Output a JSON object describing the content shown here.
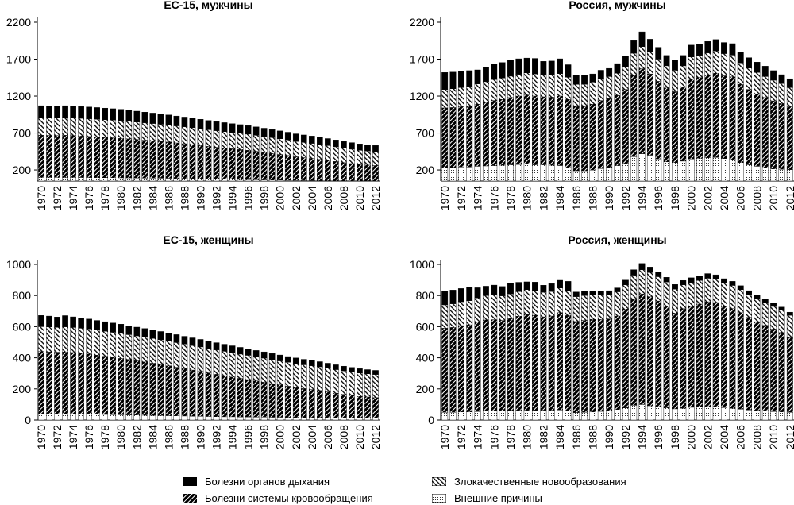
{
  "chart_data": [
    {
      "type": "bar",
      "stacked": true,
      "title": "ЕС-15, мужчины",
      "ylim": [
        50,
        2200
      ],
      "yticks": [
        200,
        700,
        1200,
        1700,
        2200
      ],
      "x": [
        1970,
        1971,
        1972,
        1973,
        1974,
        1975,
        1976,
        1977,
        1978,
        1979,
        1980,
        1981,
        1982,
        1983,
        1984,
        1985,
        1986,
        1987,
        1988,
        1989,
        1990,
        1991,
        1992,
        1993,
        1994,
        1995,
        1996,
        1997,
        1998,
        1999,
        2000,
        2001,
        2002,
        2003,
        2004,
        2005,
        2006,
        2007,
        2008,
        2009,
        2010,
        2011,
        2012
      ],
      "xtick_labels": [
        "1970",
        "1972",
        "1974",
        "1976",
        "1978",
        "1980",
        "1982",
        "1984",
        "1986",
        "1988",
        "1990",
        "1992",
        "1994",
        "1996",
        "1998",
        "2000",
        "2002",
        "2004",
        "2006",
        "2008",
        "2010",
        "2012"
      ],
      "series": [
        {
          "name": "Внешние причины",
          "values": [
            100,
            100,
            100,
            100,
            100,
            99,
            98,
            97,
            96,
            95,
            94,
            93,
            92,
            91,
            90,
            89,
            88,
            86,
            85,
            83,
            81,
            79,
            77,
            76,
            74,
            72,
            70,
            68,
            66,
            64,
            62,
            60,
            58,
            57,
            56,
            55,
            54,
            53,
            52,
            51,
            50,
            50,
            50
          ]
        },
        {
          "name": "Болезни системы кровообращения",
          "values": [
            570,
            568,
            566,
            570,
            565,
            560,
            555,
            550,
            545,
            540,
            535,
            528,
            520,
            512,
            504,
            497,
            490,
            480,
            470,
            460,
            450,
            440,
            430,
            420,
            412,
            404,
            396,
            384,
            372,
            360,
            348,
            336,
            320,
            310,
            300,
            288,
            276,
            262,
            248,
            236,
            224,
            216,
            210
          ]
        },
        {
          "name": "Злокачественные новообразования",
          "values": [
            240,
            240,
            240,
            240,
            240,
            240,
            240,
            240,
            240,
            240,
            240,
            238,
            237,
            236,
            235,
            233,
            232,
            231,
            230,
            229,
            228,
            226,
            225,
            224,
            222,
            221,
            220,
            218,
            216,
            214,
            212,
            210,
            208,
            206,
            204,
            202,
            200,
            198,
            196,
            194,
            192,
            190,
            188
          ]
        },
        {
          "name": "Болезни органов дыхания",
          "values": [
            160,
            160,
            160,
            160,
            160,
            160,
            160,
            158,
            156,
            154,
            152,
            150,
            147,
            144,
            141,
            138,
            135,
            133,
            131,
            129,
            127,
            125,
            123,
            121,
            119,
            117,
            115,
            113,
            111,
            109,
            107,
            105,
            103,
            101,
            99,
            97,
            95,
            93,
            91,
            89,
            87,
            85,
            83
          ]
        }
      ]
    },
    {
      "type": "bar",
      "stacked": true,
      "title": "Россия, мужчины",
      "ylim": [
        50,
        2200
      ],
      "yticks": [
        200,
        700,
        1200,
        1700,
        2200
      ],
      "x": [
        1970,
        1971,
        1972,
        1973,
        1974,
        1975,
        1976,
        1977,
        1978,
        1979,
        1980,
        1981,
        1982,
        1983,
        1984,
        1985,
        1986,
        1987,
        1988,
        1989,
        1990,
        1991,
        1992,
        1993,
        1994,
        1995,
        1996,
        1997,
        1998,
        1999,
        2000,
        2001,
        2002,
        2003,
        2004,
        2005,
        2006,
        2007,
        2008,
        2009,
        2010,
        2011,
        2012
      ],
      "xtick_labels": [
        "1970",
        "1972",
        "1974",
        "1976",
        "1978",
        "1980",
        "1982",
        "1984",
        "1986",
        "1988",
        "1990",
        "1992",
        "1994",
        "1996",
        "1998",
        "2000",
        "2002",
        "2004",
        "2006",
        "2008",
        "2010",
        "2012"
      ],
      "series": [
        {
          "name": "Внешние причины",
          "values": [
            230,
            235,
            240,
            240,
            250,
            255,
            260,
            265,
            270,
            275,
            280,
            270,
            270,
            265,
            260,
            230,
            190,
            190,
            200,
            220,
            235,
            260,
            290,
            380,
            420,
            400,
            350,
            310,
            300,
            320,
            350,
            360,
            365,
            370,
            355,
            340,
            300,
            270,
            250,
            230,
            215,
            210,
            205
          ]
        },
        {
          "name": "Болезни системы кровообращения",
          "values": [
            810,
            810,
            815,
            820,
            840,
            860,
            880,
            890,
            910,
            925,
            935,
            930,
            920,
            920,
            940,
            925,
            870,
            870,
            890,
            920,
            930,
            950,
            1000,
            1100,
            1150,
            1100,
            1050,
            1000,
            960,
            1000,
            1080,
            1090,
            1120,
            1140,
            1120,
            1120,
            1060,
            1020,
            980,
            950,
            920,
            890,
            850
          ]
        },
        {
          "name": "Злокачественные новообразования",
          "values": [
            250,
            255,
            260,
            270,
            275,
            280,
            285,
            290,
            290,
            295,
            300,
            300,
            300,
            300,
            305,
            300,
            300,
            300,
            300,
            300,
            300,
            300,
            300,
            300,
            300,
            300,
            300,
            300,
            290,
            290,
            300,
            300,
            300,
            300,
            300,
            295,
            290,
            290,
            290,
            285,
            280,
            270,
            260
          ]
        },
        {
          "name": "Болезни органов дыхания",
          "values": [
            230,
            225,
            220,
            215,
            190,
            200,
            210,
            210,
            220,
            210,
            200,
            210,
            180,
            190,
            200,
            170,
            120,
            120,
            110,
            110,
            110,
            130,
            150,
            170,
            200,
            170,
            160,
            140,
            140,
            140,
            160,
            150,
            155,
            155,
            150,
            155,
            150,
            140,
            140,
            140,
            130,
            120,
            120
          ]
        }
      ]
    },
    {
      "type": "bar",
      "stacked": true,
      "title": "ЕС-15, женщины",
      "ylim": [
        0,
        1000
      ],
      "yticks": [
        0,
        200,
        400,
        600,
        800,
        1000
      ],
      "x": [
        1970,
        1971,
        1972,
        1973,
        1974,
        1975,
        1976,
        1977,
        1978,
        1979,
        1980,
        1981,
        1982,
        1983,
        1984,
        1985,
        1986,
        1987,
        1988,
        1989,
        1990,
        1991,
        1992,
        1993,
        1994,
        1995,
        1996,
        1997,
        1998,
        1999,
        2000,
        2001,
        2002,
        2003,
        2004,
        2005,
        2006,
        2007,
        2008,
        2009,
        2010,
        2011,
        2012
      ],
      "xtick_labels": [
        "1970",
        "1972",
        "1974",
        "1976",
        "1978",
        "1980",
        "1982",
        "1984",
        "1986",
        "1988",
        "1990",
        "1992",
        "1994",
        "1996",
        "1998",
        "2000",
        "2002",
        "2004",
        "2006",
        "2008",
        "2010",
        "2012"
      ],
      "series": [
        {
          "name": "Внешние причины",
          "values": [
            40,
            40,
            40,
            40,
            40,
            39,
            38,
            37,
            36,
            35,
            34,
            33,
            32,
            31,
            30,
            29,
            28,
            27,
            26,
            25,
            24,
            23,
            22,
            21,
            21,
            20,
            20,
            19,
            19,
            18,
            18,
            17,
            17,
            16,
            16,
            16,
            15,
            15,
            15,
            15,
            14,
            14,
            14
          ]
        },
        {
          "name": "Болезни системы кровообращения",
          "values": [
            400,
            398,
            396,
            398,
            394,
            390,
            386,
            380,
            374,
            368,
            362,
            356,
            349,
            342,
            335,
            328,
            320,
            312,
            304,
            296,
            288,
            280,
            272,
            264,
            256,
            248,
            240,
            232,
            224,
            216,
            208,
            200,
            192,
            186,
            180,
            174,
            166,
            158,
            150,
            144,
            138,
            134,
            130
          ]
        },
        {
          "name": "Злокачественные новообразования",
          "values": [
            160,
            160,
            160,
            161,
            161,
            161,
            161,
            161,
            161,
            161,
            161,
            160,
            160,
            160,
            160,
            159,
            159,
            159,
            158,
            158,
            158,
            157,
            157,
            157,
            156,
            156,
            156,
            155,
            155,
            155,
            154,
            154,
            154,
            153,
            153,
            152,
            152,
            151,
            151,
            150,
            150,
            149,
            149
          ]
        },
        {
          "name": "Болезни органов дыхания",
          "values": [
            72,
            70,
            66,
            72,
            68,
            66,
            64,
            62,
            61,
            60,
            59,
            57,
            56,
            55,
            54,
            53,
            52,
            51,
            50,
            49,
            48,
            47,
            46,
            45,
            44,
            43,
            42,
            41,
            40,
            39,
            38,
            37,
            36,
            35,
            34,
            33,
            32,
            31,
            30,
            29,
            28,
            27,
            26
          ]
        }
      ]
    },
    {
      "type": "bar",
      "stacked": true,
      "title": "Россия, женщины",
      "ylim": [
        0,
        1000
      ],
      "yticks": [
        0,
        200,
        400,
        600,
        800,
        1000
      ],
      "x": [
        1970,
        1971,
        1972,
        1973,
        1974,
        1975,
        1976,
        1977,
        1978,
        1979,
        1980,
        1981,
        1982,
        1983,
        1984,
        1985,
        1986,
        1987,
        1988,
        1989,
        1990,
        1991,
        1992,
        1993,
        1994,
        1995,
        1996,
        1997,
        1998,
        1999,
        2000,
        2001,
        2002,
        2003,
        2004,
        2005,
        2006,
        2007,
        2008,
        2009,
        2010,
        2011,
        2012
      ],
      "xtick_labels": [
        "1970",
        "1972",
        "1974",
        "1976",
        "1978",
        "1980",
        "1982",
        "1984",
        "1986",
        "1988",
        "1990",
        "1992",
        "1994",
        "1996",
        "1998",
        "2000",
        "2002",
        "2004",
        "2006",
        "2008",
        "2010",
        "2012"
      ],
      "series": [
        {
          "name": "Внешние причины",
          "values": [
            50,
            50,
            52,
            52,
            55,
            58,
            60,
            60,
            62,
            62,
            63,
            63,
            63,
            63,
            65,
            58,
            48,
            50,
            52,
            56,
            60,
            68,
            78,
            95,
            100,
            92,
            85,
            78,
            72,
            76,
            82,
            85,
            85,
            85,
            80,
            76,
            70,
            65,
            62,
            58,
            55,
            52,
            50
          ]
        },
        {
          "name": "Болезни системы кровообращения",
          "values": [
            540,
            545,
            555,
            560,
            575,
            585,
            585,
            580,
            590,
            605,
            615,
            610,
            600,
            605,
            625,
            615,
            585,
            590,
            595,
            590,
            590,
            600,
            635,
            680,
            710,
            700,
            680,
            655,
            615,
            640,
            650,
            660,
            675,
            670,
            650,
            640,
            620,
            595,
            570,
            550,
            530,
            510,
            480
          ]
        },
        {
          "name": "Злокачественные новообразования",
          "values": [
            150,
            152,
            153,
            155,
            155,
            157,
            157,
            158,
            158,
            158,
            160,
            158,
            158,
            158,
            158,
            158,
            160,
            160,
            158,
            158,
            156,
            156,
            156,
            156,
            156,
            156,
            156,
            154,
            154,
            153,
            152,
            152,
            151,
            150,
            150,
            149,
            148,
            147,
            147,
            146,
            145,
            144,
            143
          ]
        },
        {
          "name": "Болезни органов дыхания",
          "values": [
            90,
            88,
            85,
            85,
            65,
            60,
            65,
            60,
            70,
            60,
            50,
            55,
            45,
            50,
            50,
            60,
            30,
            30,
            25,
            25,
            25,
            25,
            30,
            35,
            40,
            35,
            30,
            30,
            30,
            28,
            30,
            30,
            30,
            28,
            28,
            26,
            25,
            24,
            23,
            22,
            20,
            20,
            20
          ]
        }
      ]
    }
  ],
  "legend": {
    "items": [
      {
        "key": "resp",
        "label": "Болезни органов дыхания"
      },
      {
        "key": "cancer",
        "label": "Злокачественные новообразования"
      },
      {
        "key": "circ",
        "label": "Болезни системы кровообращения"
      },
      {
        "key": "ext",
        "label": "Внешние причины"
      }
    ]
  }
}
